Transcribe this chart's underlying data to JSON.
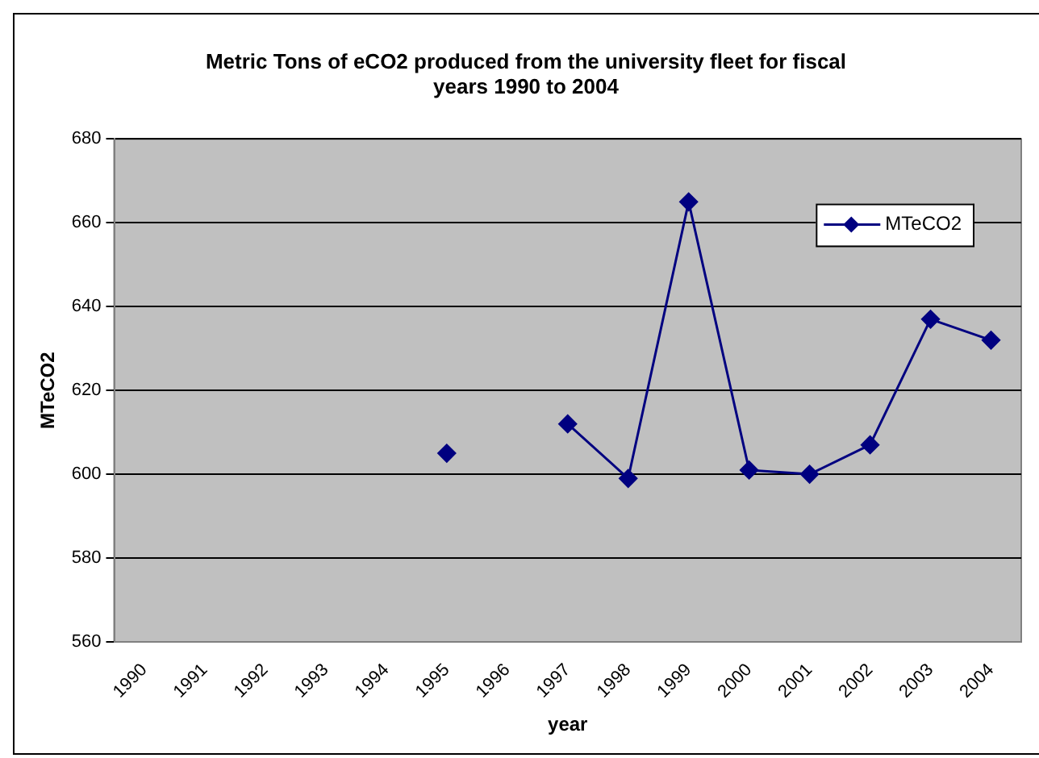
{
  "chart_data": {
    "type": "line",
    "title": "Metric Tons of eCO2 produced from the university fleet for fiscal years 1990 to 2004",
    "xlabel": "year",
    "ylabel": "MTeCO2",
    "categories": [
      "1990",
      "1991",
      "1992",
      "1993",
      "1994",
      "1995",
      "1996",
      "1997",
      "1998",
      "1999",
      "2000",
      "2001",
      "2002",
      "2003",
      "2004"
    ],
    "series": [
      {
        "name": "MTeCO2",
        "color": "#000080",
        "values": [
          null,
          null,
          null,
          null,
          null,
          605,
          null,
          612,
          599,
          665,
          601,
          600,
          607,
          637,
          632
        ]
      }
    ],
    "ylim": [
      560,
      680
    ],
    "yticks": [
      560,
      580,
      600,
      620,
      640,
      660,
      680
    ],
    "grid": "y",
    "legend": "top right",
    "marker": "diamond",
    "line_style": "solid"
  }
}
